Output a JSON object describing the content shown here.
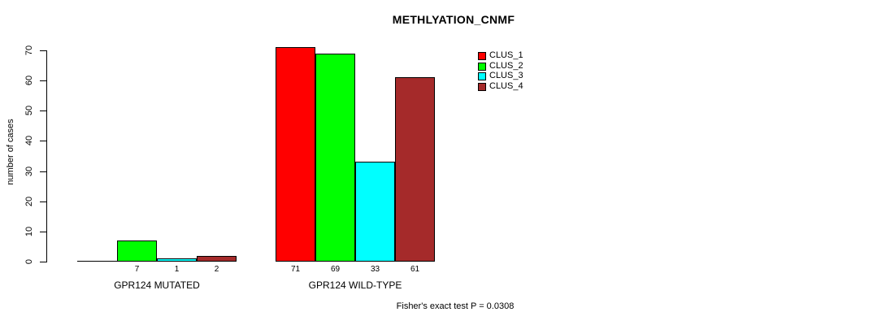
{
  "chart_data": {
    "type": "bar",
    "title": "METHLYATION_CNMF",
    "ylabel": "number of cases",
    "xlabel": "",
    "ylim": [
      0,
      70
    ],
    "yticks": [
      0,
      10,
      20,
      30,
      40,
      50,
      60,
      70
    ],
    "grid": false,
    "legend_position": "top-right",
    "categories": [
      "GPR124 MUTATED",
      "GPR124 WILD-TYPE"
    ],
    "series": [
      {
        "name": "CLUS_1",
        "color": "#ff0000",
        "values": [
          0,
          71
        ]
      },
      {
        "name": "CLUS_2",
        "color": "#00ff00",
        "values": [
          7,
          69
        ]
      },
      {
        "name": "CLUS_3",
        "color": "#00ffff",
        "values": [
          1,
          33
        ]
      },
      {
        "name": "CLUS_4",
        "color": "#a52a2a",
        "values": [
          2,
          61
        ]
      }
    ],
    "bar_value_labels_shown": [
      "7",
      "1",
      "2",
      "71",
      "69",
      "33",
      "61"
    ],
    "zero_value_labels_hidden": true,
    "annotation": "Fisher's exact test P = 0.0308"
  }
}
